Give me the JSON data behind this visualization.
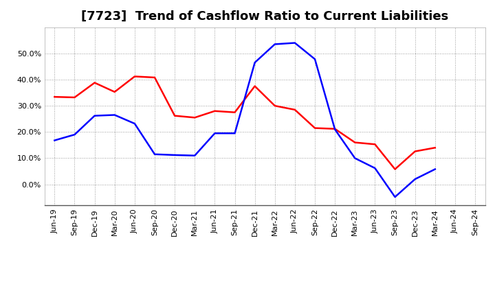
{
  "title": "[7723]  Trend of Cashflow Ratio to Current Liabilities",
  "x_labels": [
    "Jun-19",
    "Sep-19",
    "Dec-19",
    "Mar-20",
    "Jun-20",
    "Sep-20",
    "Dec-20",
    "Mar-21",
    "Jun-21",
    "Sep-21",
    "Dec-21",
    "Mar-22",
    "Jun-22",
    "Sep-22",
    "Dec-22",
    "Mar-23",
    "Jun-23",
    "Sep-23",
    "Dec-23",
    "Mar-24",
    "Jun-24",
    "Sep-24"
  ],
  "operating_cf": [
    0.334,
    0.332,
    0.388,
    0.353,
    0.412,
    0.408,
    0.262,
    0.255,
    0.28,
    0.275,
    0.375,
    0.3,
    0.285,
    0.215,
    0.212,
    0.16,
    0.153,
    0.058,
    0.126,
    0.14,
    null,
    null
  ],
  "free_cf": [
    0.168,
    0.19,
    0.262,
    0.265,
    0.232,
    0.115,
    0.112,
    0.11,
    0.195,
    0.195,
    0.465,
    0.535,
    0.54,
    0.478,
    0.21,
    0.1,
    0.062,
    -0.048,
    0.02,
    0.058,
    null,
    null
  ],
  "operating_color": "#FF0000",
  "free_color": "#0000FF",
  "ylim": [
    -0.08,
    0.6
  ],
  "yticks": [
    0.0,
    0.1,
    0.2,
    0.3,
    0.4,
    0.5
  ],
  "background_color": "#FFFFFF",
  "grid_color": "#AAAAAA",
  "title_fontsize": 13,
  "legend_fontsize": 9,
  "tick_fontsize": 8
}
